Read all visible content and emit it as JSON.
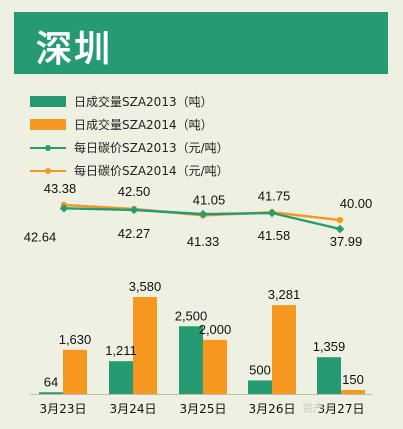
{
  "title": "深圳",
  "colors": {
    "frame_bg": "#eef1e2",
    "title_bg": "#259a73",
    "green": "#259a73",
    "orange": "#f6981f"
  },
  "legend": [
    {
      "label": "日成交量SZA2013（吨）",
      "kind": "bar",
      "color": "#259a73"
    },
    {
      "label": "日成交量SZA2014（吨）",
      "kind": "bar",
      "color": "#f6981f"
    },
    {
      "label": "每日碳价SZA2013（元/吨）",
      "kind": "line",
      "color": "#259a73"
    },
    {
      "label": "每日碳价SZA2014（元/吨）",
      "kind": "line",
      "color": "#f6981f"
    }
  ],
  "watermark": "资产",
  "chart_data": {
    "type": "bar+line",
    "categories": [
      "3月23日",
      "3月24日",
      "3月25日",
      "3月26日",
      "3月27日"
    ],
    "bar_series": [
      {
        "name": "日成交量SZA2013（吨）",
        "values": [
          64,
          1211,
          2500,
          500,
          1359
        ],
        "labels": [
          "64",
          "1,211",
          "2,500",
          "500",
          "1,359"
        ]
      },
      {
        "name": "日成交量SZA2014（吨）",
        "values": [
          1630,
          3580,
          2000,
          3281,
          150
        ],
        "labels": [
          "1,630",
          "3,580",
          "2,000",
          "3,281",
          "150"
        ]
      }
    ],
    "line_series": [
      {
        "name": "每日碳价SZA2013（元/吨）",
        "values": [
          42.64,
          42.27,
          41.33,
          41.58,
          37.99
        ],
        "labels": [
          "42.64",
          "42.27",
          "41.33",
          "41.58",
          "37.99"
        ]
      },
      {
        "name": "每日碳价SZA2014（元/吨）",
        "values": [
          43.38,
          42.5,
          41.05,
          41.75,
          40.0
        ],
        "labels": [
          "43.38",
          "42.50",
          "41.05",
          "41.75",
          "40.00"
        ]
      }
    ],
    "bar_ylim": [
      0,
      3800
    ],
    "line_ylim": [
      34,
      45
    ]
  }
}
